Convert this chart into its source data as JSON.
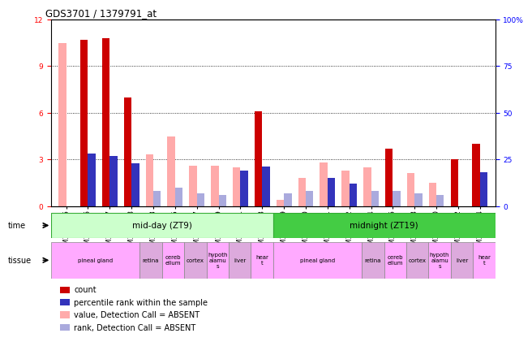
{
  "title": "GDS3701 / 1379791_at",
  "samples": [
    "GSM310035",
    "GSM310036",
    "GSM310037",
    "GSM310038",
    "GSM310043",
    "GSM310045",
    "GSM310047",
    "GSM310049",
    "GSM310051",
    "GSM310053",
    "GSM310039",
    "GSM310040",
    "GSM310041",
    "GSM310042",
    "GSM310044",
    "GSM310046",
    "GSM310048",
    "GSM310050",
    "GSM310052",
    "GSM310054"
  ],
  "count_values": [
    10.5,
    10.7,
    10.8,
    7.0,
    3.3,
    4.5,
    2.6,
    2.6,
    2.5,
    6.1,
    0.4,
    1.8,
    2.8,
    2.3,
    2.5,
    3.7,
    2.1,
    1.5,
    3.0,
    4.0
  ],
  "rank_values_pct": [
    0,
    28,
    27,
    23,
    8,
    10,
    7,
    6,
    19,
    21,
    7,
    8,
    15,
    12,
    8,
    8,
    7,
    6,
    0,
    18
  ],
  "absent_count": [
    true,
    false,
    false,
    false,
    true,
    true,
    true,
    true,
    true,
    false,
    true,
    true,
    true,
    true,
    true,
    false,
    true,
    true,
    false,
    false
  ],
  "absent_rank": [
    true,
    false,
    false,
    false,
    true,
    true,
    true,
    true,
    false,
    false,
    true,
    true,
    false,
    false,
    true,
    true,
    true,
    true,
    true,
    false
  ],
  "ylim_left": [
    0,
    12
  ],
  "ylim_right": [
    0,
    100
  ],
  "yticks_left": [
    0,
    3,
    6,
    9,
    12
  ],
  "yticks_right": [
    0,
    25,
    50,
    75,
    100
  ],
  "color_count": "#cc0000",
  "color_rank": "#3333bb",
  "color_absent_count": "#ffaaaa",
  "color_absent_rank": "#aaaadd",
  "mid_day_color": "#ccffcc",
  "midnight_color": "#44cc44",
  "pineal_color": "#ffaaff",
  "other_tissue_color": "#ddaadd",
  "tissue_spans": [
    {
      "label": "pineal gland",
      "start": 0,
      "end": 4,
      "alt": false
    },
    {
      "label": "retina",
      "start": 4,
      "end": 5,
      "alt": true
    },
    {
      "label": "cereb\nellum",
      "start": 5,
      "end": 6,
      "alt": false
    },
    {
      "label": "cortex",
      "start": 6,
      "end": 7,
      "alt": true
    },
    {
      "label": "hypoth\nalamu\ns",
      "start": 7,
      "end": 8,
      "alt": false
    },
    {
      "label": "liver",
      "start": 8,
      "end": 9,
      "alt": true
    },
    {
      "label": "hear\nt",
      "start": 9,
      "end": 10,
      "alt": false
    },
    {
      "label": "pineal gland",
      "start": 10,
      "end": 14,
      "alt": false
    },
    {
      "label": "retina",
      "start": 14,
      "end": 15,
      "alt": true
    },
    {
      "label": "cereb\nellum",
      "start": 15,
      "end": 16,
      "alt": false
    },
    {
      "label": "cortex",
      "start": 16,
      "end": 17,
      "alt": true
    },
    {
      "label": "hypoth\nalamu\ns",
      "start": 17,
      "end": 18,
      "alt": false
    },
    {
      "label": "liver",
      "start": 18,
      "end": 19,
      "alt": true
    },
    {
      "label": "hear\nt",
      "start": 19,
      "end": 20,
      "alt": false
    }
  ],
  "legend_items": [
    {
      "label": "count",
      "color": "#cc0000"
    },
    {
      "label": "percentile rank within the sample",
      "color": "#3333bb"
    },
    {
      "label": "value, Detection Call = ABSENT",
      "color": "#ffaaaa"
    },
    {
      "label": "rank, Detection Call = ABSENT",
      "color": "#aaaadd"
    }
  ],
  "bg_color": "#ffffff",
  "tick_fontsize": 6.5,
  "bar_width": 0.35
}
